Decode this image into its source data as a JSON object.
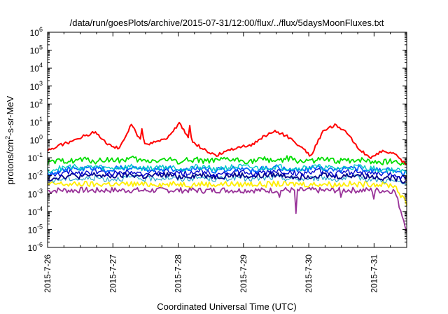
{
  "chart_data": {
    "type": "line",
    "title": "/data/run/goesPlots/archive/2015-07-31/12:00/flux/../flux/5daysMoonFluxes.txt",
    "xlabel": "Coordinated Universal Time (UTC)",
    "ylabel": "protons/cm2-s-sr-MeV",
    "ylabel_base": "protons/cm",
    "ylabel_sup": "2",
    "ylabel_rest": "-s-sr-MeV",
    "y_scale": "log",
    "ylim_exp": [
      -6,
      6
    ],
    "y_ticks": [
      {
        "base": "10",
        "exp": "-6",
        "value": -6
      },
      {
        "base": "10",
        "exp": "-5",
        "value": -5
      },
      {
        "base": "10",
        "exp": "-4",
        "value": -4
      },
      {
        "base": "10",
        "exp": "-3",
        "value": -3
      },
      {
        "base": "10",
        "exp": "-2",
        "value": -2
      },
      {
        "base": "10",
        "exp": "-1",
        "value": -1
      },
      {
        "base": "10",
        "exp": "0",
        "value": 0
      },
      {
        "base": "10",
        "exp": "1",
        "value": 1
      },
      {
        "base": "10",
        "exp": "2",
        "value": 2
      },
      {
        "base": "10",
        "exp": "3",
        "value": 3
      },
      {
        "base": "10",
        "exp": "4",
        "value": 4
      },
      {
        "base": "10",
        "exp": "5",
        "value": 5
      },
      {
        "base": "10",
        "exp": "6",
        "value": 6
      }
    ],
    "x_days": [
      0,
      1,
      2,
      3,
      4,
      5
    ],
    "x_ticks": [
      "2015-7-26",
      "2015-7-27",
      "2015-7-28",
      "2015-7-29",
      "2015-7-30",
      "2015-7-31"
    ],
    "xlim_days": [
      0,
      5.5
    ],
    "grid": false,
    "legend": "none",
    "series": [
      {
        "color": "#ff0000",
        "stroke": 2.0,
        "log10_flux": [
          -0.6,
          -0.3,
          -0.1,
          0.2,
          0.45,
          -0.2,
          -0.5,
          0.85,
          -0.3,
          -0.1,
          0.1,
          0.9,
          -0.1,
          -0.5,
          -0.9,
          -0.6,
          -0.4,
          -0.3,
          0.15,
          0.5,
          0.2,
          -0.3,
          -0.9,
          0.5,
          0.8,
          0.4,
          -0.5,
          -1.0,
          -0.6,
          -0.8,
          -1.4
        ],
        "spikes": [
          [
            1.45,
            0.85
          ],
          [
            2.18,
            0.9
          ]
        ]
      },
      {
        "color": "#00dd00",
        "stroke": 1.8,
        "log10_flux": [
          -1.3,
          -1.2,
          -1.15,
          -1.1,
          -1.2,
          -1.1,
          -1.15,
          -1.05,
          -1.2,
          -1.15,
          -1.1,
          -1.2,
          -1.1,
          -1.15,
          -1.2,
          -1.1,
          -1.15,
          -1.2,
          -1.1,
          -1.15,
          -1.05,
          -1.2,
          -1.15,
          -1.1,
          -1.2,
          -1.15,
          -1.1,
          -1.2,
          -1.25,
          -1.2,
          -1.3
        ]
      },
      {
        "color": "#00c8c8",
        "stroke": 1.4,
        "log10_flux": [
          -1.7,
          -1.6,
          -1.5,
          -1.55,
          -1.5,
          -1.6,
          -1.55,
          -1.5,
          -1.6,
          -1.55,
          -1.5,
          -1.6,
          -1.55,
          -1.5,
          -1.6,
          -1.55,
          -1.5,
          -1.55,
          -1.6,
          -1.5,
          -1.55,
          -1.6,
          -1.5,
          -1.55,
          -1.6,
          -1.55,
          -1.5,
          -1.6,
          -1.65,
          -1.7,
          -1.8
        ]
      },
      {
        "color": "#0066ff",
        "stroke": 1.8,
        "log10_flux": [
          -1.9,
          -1.7,
          -1.6,
          -1.65,
          -1.55,
          -1.7,
          -1.6,
          -1.5,
          -1.7,
          -1.65,
          -1.55,
          -1.7,
          -1.6,
          -1.55,
          -1.7,
          -1.65,
          -1.6,
          -1.7,
          -1.65,
          -1.55,
          -1.6,
          -1.7,
          -1.6,
          -1.55,
          -1.7,
          -1.6,
          -1.55,
          -1.7,
          -1.7,
          -1.75,
          -1.9
        ]
      },
      {
        "color": "#0000cc",
        "stroke": 1.4,
        "log10_flux": [
          -2.1,
          -1.9,
          -1.8,
          -1.85,
          -1.75,
          -1.9,
          -1.85,
          -1.7,
          -1.9,
          -1.85,
          -1.75,
          -1.9,
          -1.8,
          -1.75,
          -1.9,
          -1.85,
          -1.8,
          -1.9,
          -1.85,
          -1.75,
          -1.8,
          -1.9,
          -1.8,
          -1.75,
          -1.9,
          -1.8,
          -1.75,
          -1.9,
          -1.9,
          -1.95,
          -2.1
        ]
      },
      {
        "color": "#00008b",
        "stroke": 1.8,
        "log10_flux": [
          -2.2,
          -2.05,
          -2.0,
          -2.05,
          -1.95,
          -2.05,
          -2.0,
          -1.95,
          -2.05,
          -2.0,
          -1.95,
          -2.05,
          -2.0,
          -1.95,
          -2.05,
          -2.0,
          -1.95,
          -2.05,
          -2.0,
          -1.95,
          -2.0,
          -2.05,
          -2.0,
          -1.95,
          -2.05,
          -2.0,
          -1.95,
          -2.05,
          -2.1,
          -2.15,
          -2.3
        ]
      },
      {
        "color": "#33aacc",
        "stroke": 1.2,
        "log10_flux": [
          -2.3,
          -2.2,
          -2.15,
          -2.2,
          -2.1,
          -2.2,
          -2.15,
          -2.1,
          -2.2,
          -2.15,
          -2.1,
          -2.2,
          -2.15,
          -2.1,
          -2.2,
          -2.15,
          -2.1,
          -2.2,
          -2.15,
          -2.1,
          -2.15,
          -2.2,
          -2.15,
          -2.1,
          -2.2,
          -2.15,
          -2.1,
          -2.2,
          -2.25,
          -2.3,
          -2.5
        ]
      },
      {
        "color": "#ffee00",
        "stroke": 1.8,
        "log10_flux": [
          -2.5,
          -2.45,
          -2.5,
          -2.45,
          -2.5,
          -2.45,
          -2.5,
          -2.45,
          -2.5,
          -2.45,
          -2.5,
          -2.45,
          -2.5,
          -2.45,
          -2.5,
          -2.45,
          -2.5,
          -2.45,
          -2.5,
          -2.45,
          -2.5,
          -2.45,
          -2.5,
          -2.45,
          -2.5,
          -2.45,
          -2.5,
          -2.45,
          -2.5,
          -2.55,
          -3.6
        ]
      },
      {
        "color": "#993399",
        "stroke": 1.8,
        "log10_flux": [
          -2.85,
          -2.8,
          -2.82,
          -2.8,
          -2.83,
          -2.8,
          -2.82,
          -2.8,
          -2.83,
          -2.81,
          -2.8,
          -2.82,
          -2.8,
          -2.83,
          -2.81,
          -2.8,
          -2.82,
          -2.8,
          -2.83,
          -2.81,
          -2.8,
          -2.82,
          -2.8,
          -2.83,
          -2.81,
          -2.8,
          -2.82,
          -2.8,
          -2.83,
          -2.85,
          -5.0
        ],
        "dips": [
          [
            3.8,
            -4.1
          ],
          [
            3.55,
            -3.2
          ],
          [
            4.5,
            -3.2
          ],
          [
            5.0,
            -3.3
          ]
        ]
      }
    ]
  }
}
